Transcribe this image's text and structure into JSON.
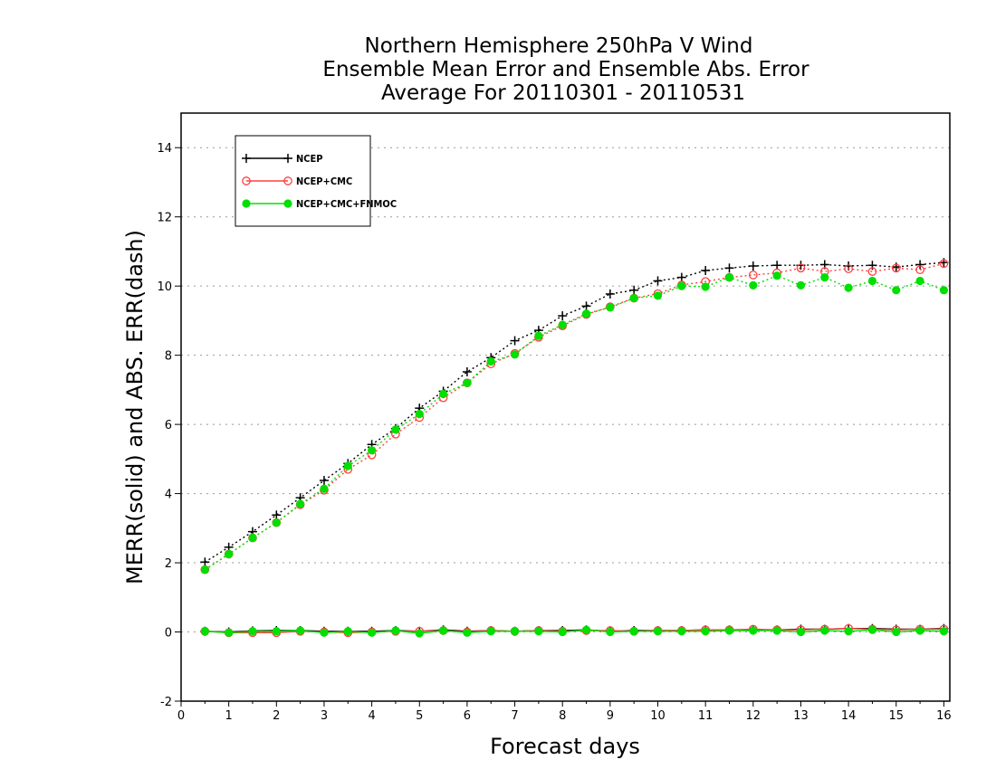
{
  "chart_data": {
    "type": "line",
    "title": [
      "Northern Hemisphere 250hPa V Wind",
      "Ensemble Mean Error and Ensemble Abs. Error",
      "Average For 20110301 - 20110531"
    ],
    "xlabel": "Forecast days",
    "ylabel": "MERR(solid) and ABS. ERR(dash)",
    "xlim": [
      0,
      16.125
    ],
    "ylim": [
      -2,
      15
    ],
    "xticks": [
      "0",
      "1",
      "2",
      "3",
      "4",
      "5",
      "6",
      "7",
      "8",
      "9",
      "10",
      "11",
      "12",
      "13",
      "14",
      "15",
      "16"
    ],
    "yticks": [
      "-2",
      "0",
      "2",
      "4",
      "6",
      "8",
      "10",
      "12",
      "14"
    ],
    "grid": "horizontal dotted",
    "legend_placement": "top-left",
    "x": [
      0.5,
      1.0,
      1.5,
      2.0,
      2.5,
      3.0,
      3.5,
      4.0,
      4.5,
      5.0,
      5.5,
      6.0,
      6.5,
      7.0,
      7.5,
      8.0,
      8.5,
      9.0,
      9.5,
      10.0,
      10.5,
      11.0,
      11.5,
      12.0,
      12.5,
      13.0,
      13.5,
      14.0,
      14.5,
      15.0,
      15.5,
      16.0
    ],
    "series": [
      {
        "name": "NCEP",
        "color": "#000000",
        "marker": "plus",
        "abs_err": [
          2.02,
          2.45,
          2.9,
          3.38,
          3.88,
          4.38,
          4.87,
          5.42,
          5.88,
          6.47,
          6.96,
          7.52,
          7.93,
          8.42,
          8.72,
          9.14,
          9.42,
          9.77,
          9.88,
          10.15,
          10.25,
          10.45,
          10.52,
          10.58,
          10.6,
          10.6,
          10.62,
          10.58,
          10.6,
          10.55,
          10.62,
          10.68
        ],
        "mean_err": [
          0.02,
          0.0,
          0.03,
          0.04,
          0.04,
          0.02,
          0.02,
          0.02,
          0.04,
          0.02,
          0.06,
          0.02,
          0.04,
          0.02,
          0.04,
          0.04,
          0.06,
          0.02,
          0.04,
          0.04,
          0.04,
          0.06,
          0.06,
          0.06,
          0.06,
          0.08,
          0.08,
          0.1,
          0.1,
          0.08,
          0.08,
          0.1
        ]
      },
      {
        "name": "NCEP+CMC",
        "color": "#ff4040",
        "marker": "open-circle",
        "abs_err": [
          1.8,
          2.25,
          2.72,
          3.16,
          3.68,
          4.1,
          4.7,
          5.12,
          5.72,
          6.2,
          6.77,
          7.2,
          7.75,
          8.05,
          8.52,
          8.85,
          9.18,
          9.4,
          9.65,
          9.78,
          10.03,
          10.13,
          10.25,
          10.32,
          10.38,
          10.52,
          10.42,
          10.5,
          10.42,
          10.52,
          10.47,
          10.65
        ],
        "mean_err": [
          0.02,
          -0.02,
          -0.02,
          -0.02,
          0.02,
          0.0,
          -0.02,
          0.0,
          0.02,
          0.02,
          0.04,
          0.0,
          0.04,
          0.02,
          0.04,
          0.02,
          0.04,
          0.04,
          0.02,
          0.04,
          0.04,
          0.06,
          0.06,
          0.08,
          0.06,
          0.06,
          0.08,
          0.1,
          0.08,
          0.06,
          0.08,
          0.08
        ]
      },
      {
        "name": "NCEP+CMC+FNMOC",
        "color": "#00e000",
        "marker": "filled-circle",
        "abs_err": [
          1.8,
          2.25,
          2.72,
          3.16,
          3.7,
          4.14,
          4.8,
          5.25,
          5.85,
          6.3,
          6.88,
          7.2,
          7.82,
          8.02,
          8.56,
          8.88,
          9.2,
          9.38,
          9.65,
          9.72,
          10.0,
          9.98,
          10.25,
          10.02,
          10.3,
          10.02,
          10.25,
          9.95,
          10.15,
          9.88,
          10.15,
          9.88
        ],
        "mean_err": [
          0.02,
          -0.02,
          0.02,
          0.02,
          0.04,
          -0.02,
          0.02,
          -0.02,
          0.04,
          -0.04,
          0.04,
          -0.02,
          0.02,
          0.02,
          0.02,
          0.0,
          0.06,
          0.0,
          0.02,
          0.02,
          0.02,
          0.02,
          0.04,
          0.04,
          0.04,
          0.0,
          0.04,
          0.02,
          0.06,
          0.0,
          0.04,
          0.02
        ]
      }
    ]
  }
}
